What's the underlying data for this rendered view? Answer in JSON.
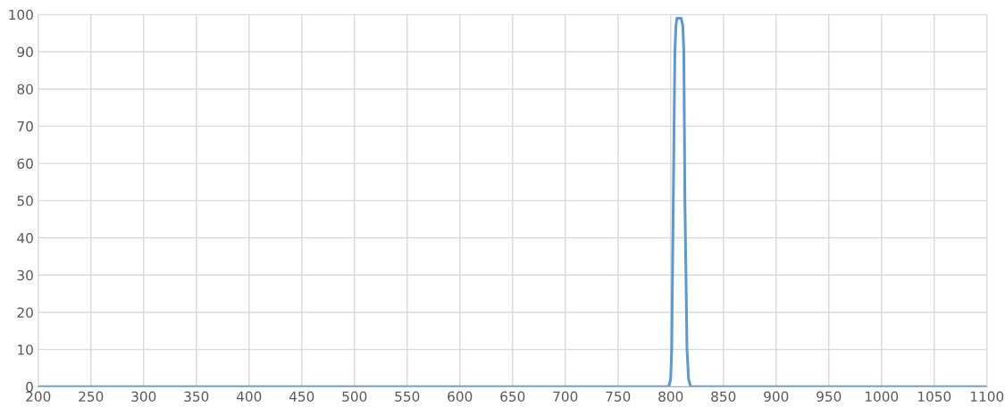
{
  "chart_data": {
    "type": "line",
    "x": [
      200,
      400,
      600,
      790,
      798,
      800,
      801,
      802.5,
      804,
      805,
      806,
      808,
      810,
      811.5,
      812.5,
      813.5,
      815.5,
      817,
      819,
      830,
      900,
      1100
    ],
    "series": [
      {
        "color": "#5b9bd5",
        "values": [
          0,
          0,
          0,
          0,
          0,
          2,
          10,
          50,
          90,
          97,
          99,
          99,
          99,
          97,
          90,
          50,
          10,
          2,
          0,
          0,
          0,
          0
        ]
      }
    ],
    "xlim": [
      200,
      1100
    ],
    "xticks": [
      200,
      250,
      300,
      350,
      400,
      450,
      500,
      550,
      600,
      650,
      700,
      750,
      800,
      850,
      900,
      950,
      1000,
      1050,
      1100
    ],
    "ylim": [
      0,
      100
    ],
    "yticks": [
      0,
      10,
      20,
      30,
      40,
      50,
      60,
      70,
      80,
      90,
      100
    ],
    "grid": true
  }
}
